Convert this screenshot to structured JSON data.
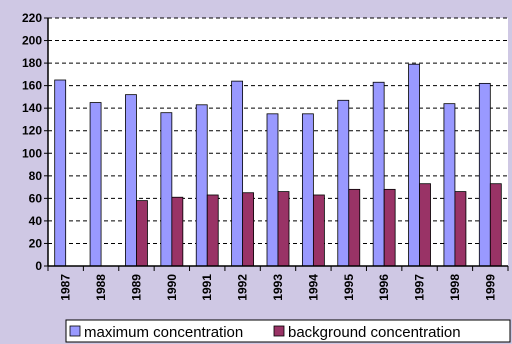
{
  "chart_data": {
    "type": "bar",
    "categories": [
      "1987",
      "1988",
      "1989",
      "1990",
      "1991",
      "1992",
      "1993",
      "1994",
      "1995",
      "1996",
      "1997",
      "1998",
      "1999"
    ],
    "series": [
      {
        "name": "maximum concentration",
        "color": "#9999ff",
        "values": [
          165,
          145,
          152,
          136,
          143,
          164,
          135,
          135,
          147,
          163,
          179,
          144,
          162
        ]
      },
      {
        "name": "background concentration",
        "color": "#993366",
        "values": [
          null,
          null,
          58,
          61,
          63,
          65,
          66,
          63,
          68,
          68,
          73,
          66,
          73
        ]
      }
    ],
    "ylim": [
      0,
      220
    ],
    "yticks": [
      0,
      20,
      40,
      60,
      80,
      100,
      120,
      140,
      160,
      180,
      200,
      220
    ],
    "grid": true,
    "legend": "bottom"
  }
}
